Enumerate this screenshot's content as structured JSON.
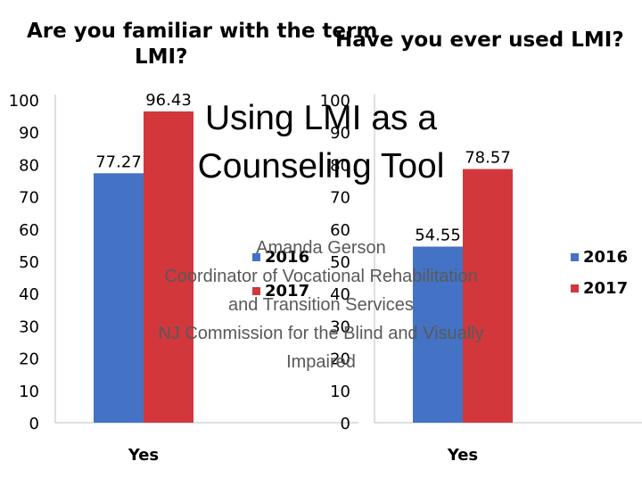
{
  "slide": {
    "title": "Using LMI as a Counseling Tool",
    "subtitle_lines": [
      "Amanda Gerson",
      "Coordinator of Vocational Rehabilitation",
      "and Transition Services",
      "NJ Commission for the Blind and Visually",
      "Impaired"
    ]
  },
  "colors": {
    "series_2016": "#4472C4",
    "series_2017": "#D2373C"
  },
  "chart_data": [
    {
      "type": "bar",
      "title_lines": [
        "Are you familiar with the term",
        "LMI?"
      ],
      "categories": [
        "Yes"
      ],
      "series": [
        {
          "name": "2016",
          "values": [
            77.27
          ],
          "labels": [
            "77.27"
          ]
        },
        {
          "name": "2017",
          "values": [
            96.43
          ],
          "labels": [
            "96.43"
          ]
        }
      ],
      "ylim": [
        0,
        100
      ],
      "yticks": [
        "0",
        "10",
        "20",
        "30",
        "40",
        "50",
        "60",
        "70",
        "80",
        "90",
        "100"
      ],
      "legend_position": "right",
      "grid": false
    },
    {
      "type": "bar",
      "title_lines": [
        "Have you ever used LMI?"
      ],
      "categories": [
        "Yes"
      ],
      "series": [
        {
          "name": "2016",
          "values": [
            54.55
          ],
          "labels": [
            "54.55"
          ]
        },
        {
          "name": "2017",
          "values": [
            78.57
          ],
          "labels": [
            "78.57"
          ]
        }
      ],
      "ylim": [
        0,
        100
      ],
      "yticks": [
        "0",
        "10",
        "20",
        "30",
        "40",
        "50",
        "60",
        "70",
        "80",
        "90",
        "100"
      ],
      "legend_position": "right",
      "grid": false
    }
  ]
}
